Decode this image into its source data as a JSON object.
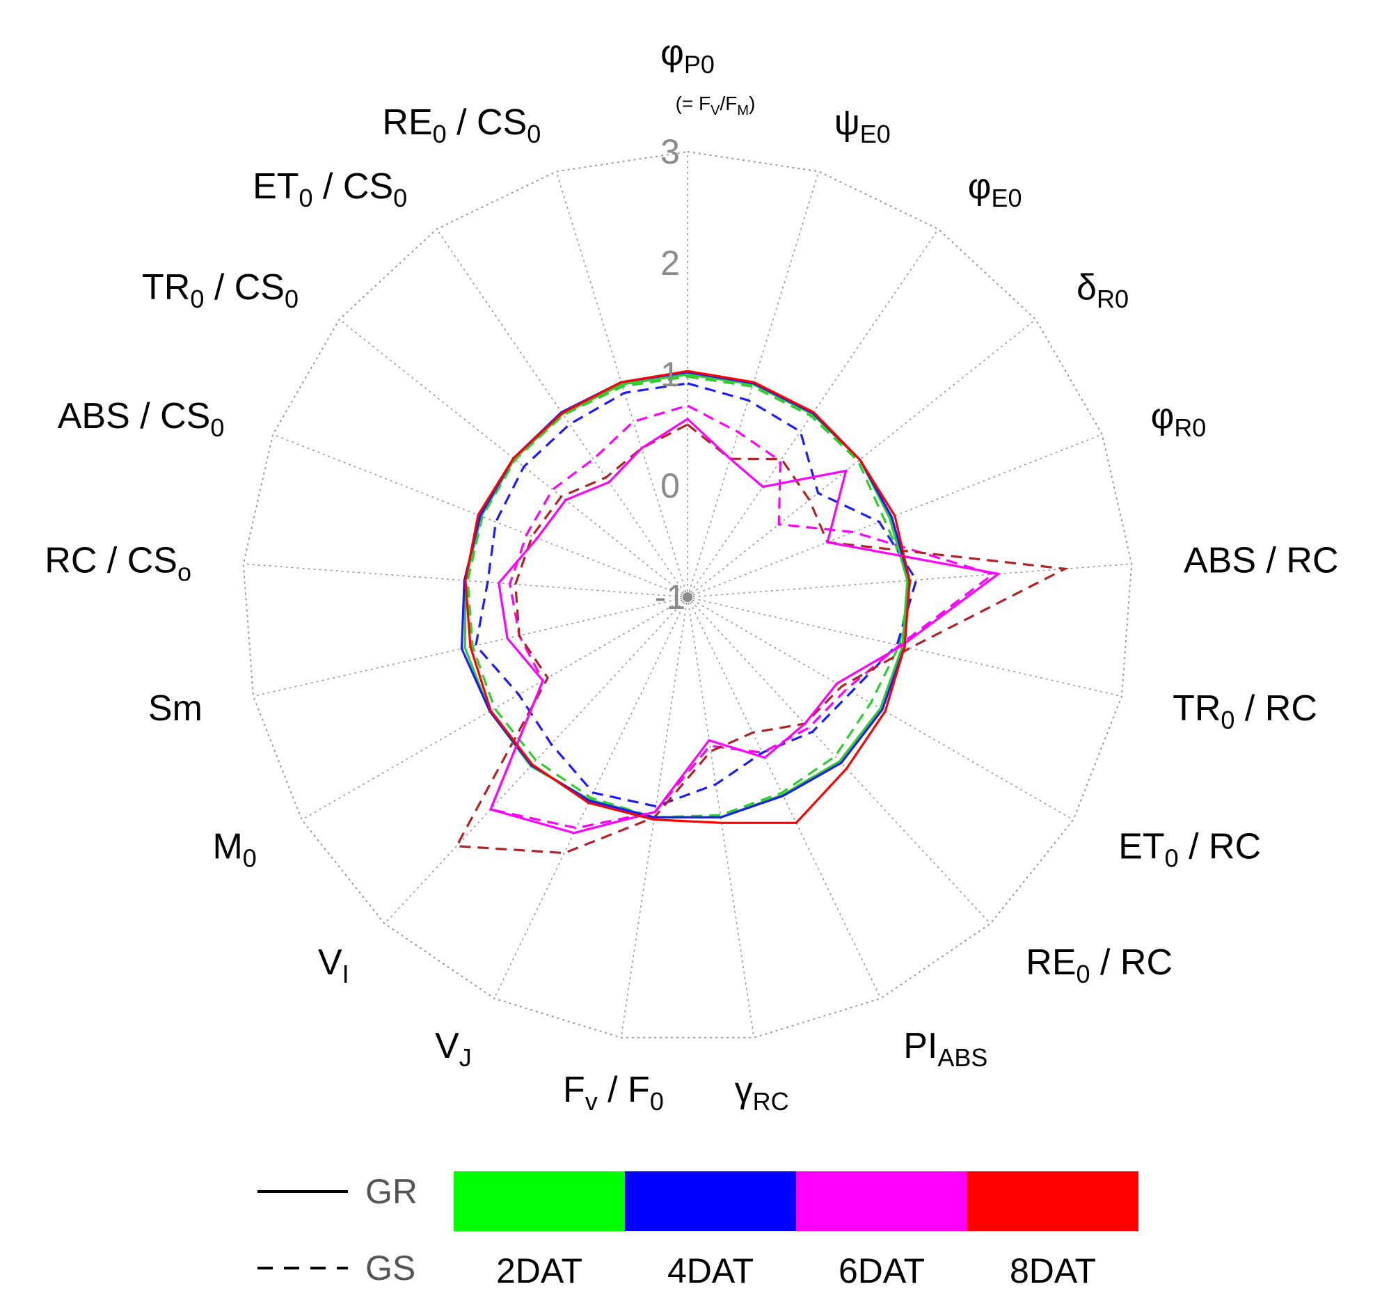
{
  "chart_data": {
    "type": "radar",
    "r_ticks": [
      -1,
      0,
      1,
      2,
      3
    ],
    "rlim": [
      -1,
      3
    ],
    "axes": [
      {
        "main": "φ",
        "sub": "P0",
        "note": "(= F",
        "note_sub1": "V",
        "note_mid": "/F",
        "note_sub2": "M",
        "note_end": ")"
      },
      {
        "main": "ψ",
        "sub": "E0"
      },
      {
        "main": "φ",
        "sub": "E0"
      },
      {
        "main": "δ",
        "sub": "R0"
      },
      {
        "main": "φ",
        "sub": "R0"
      },
      {
        "main": "ABS / RC",
        "sub": ""
      },
      {
        "main": "TR",
        "sub": "0",
        "post": " / RC"
      },
      {
        "main": "ET",
        "sub": "0",
        "post": " / RC"
      },
      {
        "main": "RE",
        "sub": "0",
        "post": " / RC"
      },
      {
        "main": "PI",
        "sub": "ABS"
      },
      {
        "main": "γ",
        "sub": "RC"
      },
      {
        "main": "F",
        "sub": "v",
        "post": " / F",
        "sub2": "0"
      },
      {
        "main": "V",
        "sub": "J"
      },
      {
        "main": "V",
        "sub": "I"
      },
      {
        "main": "M",
        "sub": "0"
      },
      {
        "main": "Sm",
        "sub": ""
      },
      {
        "main": "RC / CS",
        "sub": "o"
      },
      {
        "main": "ABS / CS",
        "sub": "0"
      },
      {
        "main": "TR",
        "sub": "0",
        "post": " / CS",
        "sub2": "0"
      },
      {
        "main": "ET",
        "sub": "0",
        "post": " / CS",
        "sub2": "0"
      },
      {
        "main": "RE",
        "sub": "0",
        "post": " / CS",
        "sub2": "0"
      }
    ],
    "series": [
      {
        "name": "GR 2DAT",
        "color": "#2ecc2e",
        "dash": false,
        "values": [
          1.0,
          1.0,
          0.99,
          0.98,
          0.95,
          0.98,
          0.98,
          1.0,
          1.01,
          0.97,
          1.0,
          1.0,
          1.02,
          1.07,
          1.05,
          1.05,
          1.0,
          0.99,
          0.99,
          0.99,
          1.0
        ]
      },
      {
        "name": "GR 4DAT",
        "color": "#1a1aff",
        "dash": false,
        "values": [
          1.02,
          1.01,
          1.0,
          0.98,
          0.97,
          1.0,
          1.0,
          1.02,
          1.03,
          0.98,
          1.0,
          1.0,
          1.03,
          1.06,
          1.05,
          1.08,
          1.01,
          1.0,
          1.0,
          1.01,
          1.02
        ]
      },
      {
        "name": "GR 6DAT",
        "color": "#ff00ff",
        "dash": false,
        "values": [
          0.6,
          0.3,
          0.2,
          0.82,
          0.35,
          1.8,
          0.97,
          0.55,
          0.55,
          0.6,
          0.3,
          0.95,
          1.35,
          1.6,
          0.5,
          0.66,
          0.7,
          0.45,
          0.4,
          0.25,
          0.4
        ]
      },
      {
        "name": "GR 8DAT",
        "color": "#ff0000",
        "dash": false,
        "values": [
          1.03,
          1.02,
          1.01,
          0.98,
          1.0,
          1.0,
          1.0,
          1.05,
          1.1,
          1.25,
          1.05,
          1.02,
          1.05,
          1.05,
          1.04,
          1.0,
          1.0,
          1.02,
          1.0,
          1.0,
          1.02
        ]
      },
      {
        "name": "GS 2DAT",
        "color": "#2ecc2e",
        "dash": true,
        "values": [
          0.98,
          0.98,
          0.97,
          0.96,
          0.9,
          1.01,
          0.95,
          0.9,
          0.95,
          0.95,
          0.98,
          1.0,
          1.0,
          1.0,
          1.0,
          0.98,
          0.98,
          0.98,
          0.98,
          0.98,
          0.98
        ]
      },
      {
        "name": "GS 4DAT",
        "color": "#1a1aff",
        "dash": true,
        "values": [
          0.92,
          0.85,
          0.8,
          0.5,
          0.85,
          1.06,
          0.93,
          0.7,
          0.65,
          0.55,
          0.7,
          0.9,
          0.95,
          0.8,
          0.75,
          0.95,
          0.8,
          0.85,
          0.88,
          0.88,
          0.92
        ]
      },
      {
        "name": "GS 6DAT",
        "color": "#ff00ff",
        "dash": true,
        "values": [
          0.72,
          0.55,
          0.48,
          0.05,
          0.6,
          1.75,
          0.95,
          0.65,
          0.6,
          0.55,
          0.35,
          0.95,
          1.3,
          1.6,
          0.5,
          0.55,
          0.6,
          0.55,
          0.55,
          0.5,
          0.65
        ]
      },
      {
        "name": "GS 8DAT",
        "color": "#b22222",
        "dash": true,
        "values": [
          0.55,
          0.3,
          0.5,
          0.4,
          0.35,
          2.4,
          1.05,
          0.6,
          0.55,
          0.35,
          0.4,
          1.0,
          1.55,
          2.05,
          0.45,
          0.55,
          0.55,
          0.5,
          0.45,
          0.3,
          0.4
        ]
      }
    ],
    "legend": {
      "lines": [
        {
          "label": "GR",
          "style": "solid"
        },
        {
          "label": "GS",
          "style": "dashed"
        }
      ],
      "colors": [
        {
          "label": "2DAT",
          "color": "#00ff00"
        },
        {
          "label": "4DAT",
          "color": "#0000ff"
        },
        {
          "label": "6DAT",
          "color": "#ff00ff"
        },
        {
          "label": "8DAT",
          "color": "#ff0000"
        }
      ]
    }
  }
}
